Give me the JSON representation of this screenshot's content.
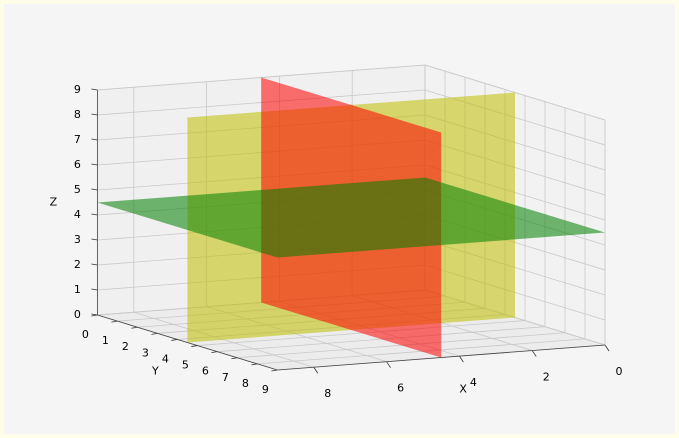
{
  "chart_data": {
    "type": "surface3d",
    "xlabel": "X",
    "ylabel": "Y",
    "zlabel": "Z",
    "xlim": [
      0,
      9
    ],
    "ylim": [
      0,
      9
    ],
    "zlim": [
      0,
      9
    ],
    "xticks": [
      0,
      2,
      4,
      6,
      8
    ],
    "yticks": [
      0,
      1,
      2,
      3,
      4,
      5,
      6,
      7,
      8,
      9
    ],
    "zticks": [
      0,
      1,
      2,
      3,
      4,
      5,
      6,
      7,
      8,
      9
    ],
    "grid": true,
    "series": [
      {
        "color": "#bfbf00",
        "x": [
          0,
          9
        ],
        "y": [
          4.5,
          4.5
        ],
        "z": [
          0,
          9
        ]
      },
      {
        "color": "#ff0000",
        "x": [
          4.5,
          4.5
        ],
        "y": [
          0,
          9
        ],
        "z": [
          0,
          9
        ]
      },
      {
        "color": "#008000",
        "x": [
          0,
          9
        ],
        "y": [
          0,
          9
        ],
        "z": [
          4.5,
          4.5
        ]
      }
    ]
  }
}
